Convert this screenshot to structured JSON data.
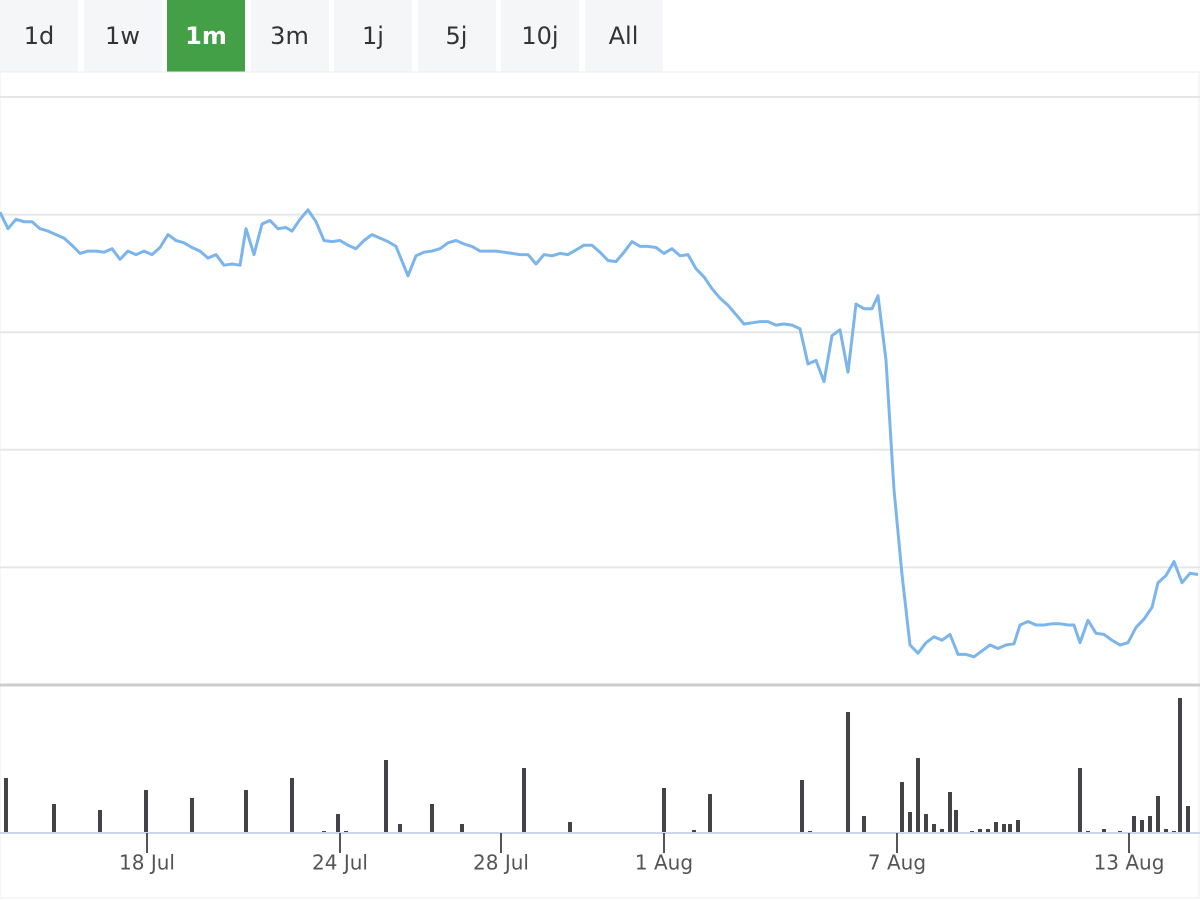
{
  "range_buttons": [
    "1d",
    "1w",
    "1m",
    "3m",
    "1j",
    "5j",
    "10j",
    "All"
  ],
  "selected_index": 2,
  "chart_data": {
    "type": "line",
    "color": "#7cb5ec",
    "grid": true,
    "xlim": [
      0,
      150
    ],
    "ylim": [
      0,
      500
    ],
    "yticks": [
      0,
      100,
      200,
      300,
      400,
      500
    ],
    "xticks": [
      {
        "value": 18.375,
        "label": "18 Jul"
      },
      {
        "value": 42.5,
        "label": "24 Jul"
      },
      {
        "value": 62.625,
        "label": "28 Jul"
      },
      {
        "value": 83,
        "label": "1 Aug"
      },
      {
        "value": 112.125,
        "label": "7 Aug"
      },
      {
        "value": 141.125,
        "label": "13 Aug"
      }
    ],
    "x": [
      0,
      1,
      2,
      3,
      4,
      5,
      6,
      7,
      8,
      9,
      10,
      11,
      12,
      13,
      14,
      15,
      16,
      17,
      18,
      19,
      20,
      21,
      22,
      23,
      24,
      25,
      26,
      27,
      28,
      29,
      30,
      30.75,
      31.75,
      32.75,
      33.75,
      34.75,
      35.75,
      36.5,
      37.5,
      38.5,
      39.5,
      40.5,
      41.5,
      42.5,
      43.5,
      44.5,
      45.5,
      46.5,
      47.5,
      48.5,
      49.5,
      51,
      52,
      53,
      54,
      55,
      56,
      57,
      58,
      59,
      60,
      61,
      62,
      63,
      64,
      65,
      66,
      67,
      68,
      69,
      70,
      71,
      72,
      73,
      74,
      75,
      76,
      77,
      78,
      79,
      80,
      81,
      82,
      83,
      84,
      85,
      86,
      87,
      88,
      89,
      90,
      91,
      92,
      93,
      94,
      95,
      96,
      97,
      98,
      99,
      100,
      101,
      102,
      103,
      104,
      105,
      106,
      107,
      108,
      109,
      109.75,
      110.75,
      111.75,
      112.75,
      113.75,
      114.75,
      115.75,
      116.75,
      117.75,
      118.75,
      119.75,
      120.75,
      121.75,
      122.75,
      123.75,
      124.75,
      125.75,
      126.75,
      127.5,
      128.5,
      129.5,
      130.5,
      131.5,
      132.5,
      133.5,
      134.25,
      135,
      136,
      137,
      138,
      139,
      140,
      141,
      142,
      143,
      144,
      144.75,
      145.75,
      146.75,
      147.75,
      148.75,
      149.75
    ],
    "values": [
      402,
      388,
      396,
      394,
      394,
      388,
      386,
      383,
      380,
      374,
      367,
      369,
      369,
      368,
      371,
      362,
      369,
      366,
      369,
      366,
      372,
      383,
      378,
      376,
      372,
      369,
      363,
      366,
      357,
      358,
      357,
      388,
      366,
      392,
      395,
      388,
      389,
      386,
      396,
      404,
      394,
      378,
      377,
      378,
      374,
      371,
      378,
      383,
      380,
      377,
      373,
      348,
      365,
      368,
      369,
      371,
      376,
      378,
      375,
      373,
      369,
      369,
      369,
      368,
      367,
      366,
      366,
      358,
      366,
      365,
      367,
      366,
      370,
      374,
      374,
      368,
      361,
      360,
      368,
      377,
      373,
      373,
      372,
      367,
      371,
      365,
      366,
      354,
      347,
      337,
      329,
      323,
      315,
      307,
      308,
      309,
      309,
      306,
      307,
      306,
      303,
      273,
      276,
      258,
      297,
      302,
      266,
      324,
      320,
      320,
      331,
      276,
      166,
      94,
      34,
      27,
      36,
      41,
      38,
      43,
      26,
      26,
      24,
      29,
      34,
      31,
      34,
      35,
      51,
      54,
      51,
      51,
      52,
      52,
      51,
      51,
      36,
      55,
      44,
      43,
      38,
      34,
      36,
      49,
      56,
      66,
      87,
      93,
      105,
      87,
      95,
      94
    ],
    "volume": {
      "color": "#434348",
      "ylim": [
        0,
        145
      ],
      "x": [
        0.75,
        6.75,
        12.5,
        18.25,
        24,
        30.75,
        36.5,
        40.5,
        42.25,
        43.25,
        48.25,
        50,
        54,
        57.75,
        65.5,
        71.25,
        83,
        86.75,
        88.75,
        100.25,
        101.25,
        106,
        108,
        112.75,
        113.75,
        114.75,
        115.75,
        116.75,
        117.75,
        118.75,
        119.5,
        121.5,
        122.5,
        123.5,
        124.5,
        125.5,
        126.25,
        127.25,
        135,
        136,
        138,
        140,
        141.75,
        142.75,
        143.75,
        144.75,
        145.75,
        146.75,
        147.5,
        148.5
      ],
      "values": [
        55,
        29,
        23,
        43,
        35,
        43,
        55,
        2,
        19,
        2,
        73,
        9,
        29,
        9,
        65,
        11,
        45,
        3,
        39,
        53,
        2,
        121,
        17,
        51,
        21,
        75,
        19,
        9,
        4,
        41,
        23,
        2,
        4,
        4,
        11,
        9,
        9,
        13,
        65,
        2,
        4,
        2,
        17,
        13,
        17,
        37,
        4,
        2,
        135,
        27
      ]
    }
  }
}
